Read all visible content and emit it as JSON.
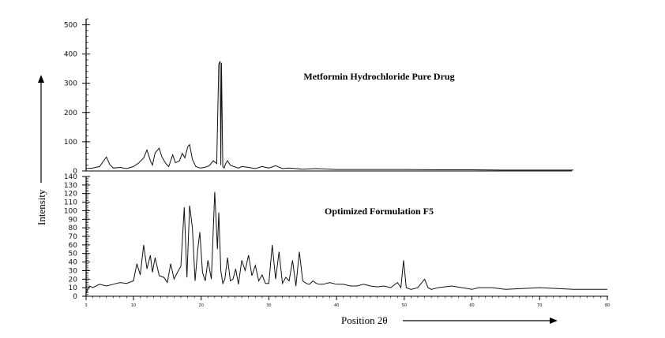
{
  "chart_data": {
    "type": "line",
    "xlabel": "Position 2θ",
    "ylabel": "Intensity",
    "x_ticks": [
      "3",
      "10",
      "20",
      "30",
      "40",
      "50",
      "60",
      "70",
      "80"
    ],
    "panels": [
      {
        "title": "Metformin Hydrochloride Pure Drug",
        "xlim": [
          3,
          75
        ],
        "ylim": [
          0,
          520
        ],
        "y_ticks": [
          0,
          100,
          200,
          300,
          400,
          500
        ],
        "series": [
          {
            "x": [
              3,
              4,
              5,
              5.6,
              6,
              6.5,
              7,
              8,
              9,
              10,
              10.8,
              11.5,
              12,
              12.5,
              12.8,
              13.2,
              13.8,
              14.2,
              14.8,
              15.2,
              15.8,
              16.2,
              16.8,
              17.2,
              17.6,
              18,
              18.3,
              18.7,
              19.2,
              19.8,
              20.5,
              21.2,
              21.8,
              22.3,
              22.6,
              22.8,
              22.9,
              23.0,
              23.2,
              23.4,
              23.6,
              23.9,
              24.3,
              24.8,
              25.5,
              26,
              27,
              28,
              29,
              30,
              31,
              32,
              33,
              35,
              37,
              40,
              45,
              50,
              55,
              60,
              65,
              70,
              75
            ],
            "y": [
              8,
              10,
              15,
              35,
              48,
              22,
              10,
              12,
              8,
              15,
              28,
              45,
              72,
              35,
              20,
              62,
              78,
              48,
              25,
              15,
              55,
              28,
              35,
              60,
              45,
              82,
              90,
              40,
              15,
              10,
              12,
              18,
              35,
              25,
              365,
              375,
              20,
              370,
              15,
              10,
              25,
              35,
              20,
              15,
              10,
              15,
              12,
              8,
              15,
              10,
              18,
              8,
              10,
              6,
              8,
              5,
              5,
              5,
              4,
              4,
              3,
              3,
              3
            ]
          }
        ]
      },
      {
        "title": "Optimized Formulation F5",
        "xlim": [
          3,
          80
        ],
        "ylim": [
          0,
          140
        ],
        "y_ticks": [
          0,
          10,
          20,
          30,
          40,
          50,
          60,
          70,
          80,
          90,
          100,
          110,
          120,
          130,
          140
        ],
        "series": [
          {
            "x": [
              3,
              3.5,
              4,
              5,
              6,
              7,
              8,
              9,
              10,
              10.5,
              11,
              11.5,
              12,
              12.5,
              12.8,
              13.2,
              13.8,
              14.5,
              15,
              15.5,
              16,
              16.5,
              17,
              17.5,
              17.9,
              18.3,
              18.7,
              19.1,
              19.5,
              19.8,
              20.2,
              20.6,
              21,
              21.5,
              22,
              22.4,
              22.6,
              22.9,
              23.2,
              23.5,
              23.9,
              24.3,
              24.7,
              25.1,
              25.5,
              26,
              26.5,
              27,
              27.5,
              28,
              28.5,
              29,
              29.5,
              30,
              30.5,
              31,
              31.5,
              32,
              32.5,
              33,
              33.5,
              34,
              34.5,
              35,
              35.5,
              36,
              36.5,
              37,
              37.5,
              38,
              39,
              40,
              41,
              42,
              43,
              44,
              45,
              46,
              47,
              48,
              49,
              49.5,
              49.9,
              50.3,
              51,
              52,
              53,
              53.5,
              54,
              55,
              57,
              60,
              61,
              63,
              65,
              70,
              75,
              80
            ],
            "y": [
              4,
              12,
              10,
              14,
              12,
              14,
              16,
              15,
              18,
              38,
              25,
              60,
              32,
              48,
              28,
              45,
              24,
              22,
              16,
              38,
              20,
              28,
              35,
              104,
              22,
              106,
              80,
              18,
              55,
              75,
              28,
              18,
              42,
              20,
              122,
              55,
              98,
              30,
              15,
              20,
              45,
              18,
              20,
              32,
              14,
              42,
              30,
              48,
              24,
              36,
              18,
              25,
              15,
              15,
              60,
              20,
              52,
              15,
              22,
              18,
              42,
              12,
              52,
              18,
              15,
              14,
              18,
              15,
              14,
              14,
              16,
              14,
              14,
              12,
              12,
              14,
              12,
              11,
              12,
              10,
              16,
              10,
              42,
              10,
              8,
              10,
              20,
              10,
              8,
              10,
              12,
              8,
              10,
              10,
              8,
              10,
              8,
              8
            ]
          }
        ]
      }
    ]
  }
}
